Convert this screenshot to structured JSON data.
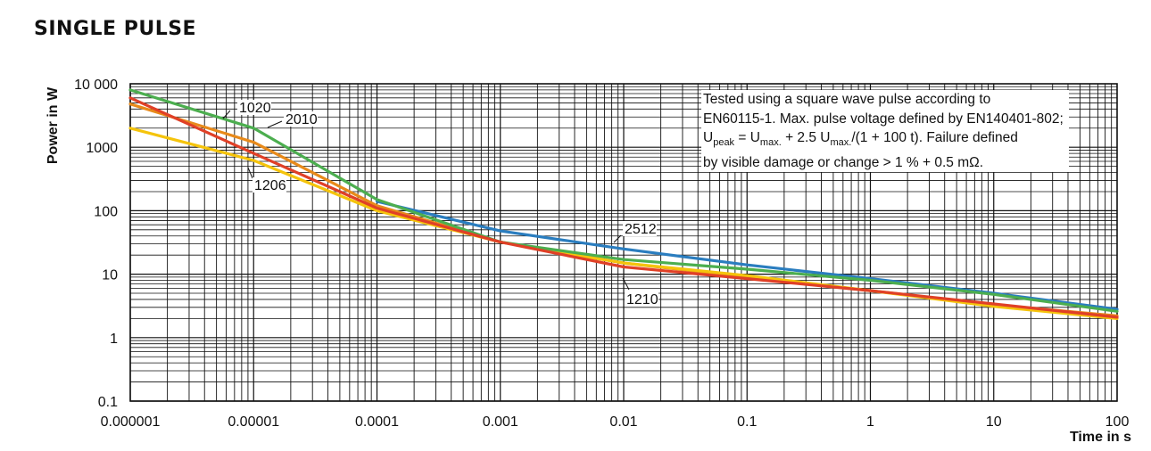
{
  "page": {
    "title": "SINGLE PULSE"
  },
  "note": {
    "line1": "Tested using a square wave pulse according to",
    "line2": "EN60115-1. Max. pulse voltage defined by EN140401-802;",
    "line3_p1": "U",
    "line3_sub1": "peak",
    "line3_p2": " = U",
    "line3_sub2": "max.",
    "line3_p3": " + 2.5 U",
    "line3_sub3": "max.",
    "line3_p4": "/(1 + 100 t). Failure defined",
    "line4": "by visible damage or change > 1 % + 0.5 mΩ."
  },
  "chart_data": {
    "type": "line",
    "title": "SINGLE PULSE",
    "xlabel": "Time in s",
    "ylabel": "Power in W",
    "x_scale": "log",
    "y_scale": "log",
    "xlim": [
      1e-06,
      100
    ],
    "ylim": [
      0.1,
      10000
    ],
    "x_ticks": [
      "0.000001",
      "0.00001",
      "0.0001",
      "0.001",
      "0.01",
      "0.1",
      "1",
      "10",
      "100"
    ],
    "y_ticks": [
      "0.1",
      "1",
      "10",
      "100",
      "1000",
      "10 000"
    ],
    "grid": true,
    "series": [
      {
        "name": "1020",
        "color": "#e04027",
        "points": [
          [
            1e-06,
            6000
          ],
          [
            1e-05,
            800
          ],
          [
            0.0001,
            110
          ],
          [
            0.001,
            32
          ],
          [
            0.01,
            13
          ],
          [
            0.1,
            8.5
          ],
          [
            1,
            5.5
          ],
          [
            10,
            3.4
          ],
          [
            100,
            2.1
          ]
        ]
      },
      {
        "name": "2010",
        "color": "#4cae4f",
        "points": [
          [
            1e-06,
            8000
          ],
          [
            1e-05,
            2000
          ],
          [
            0.0001,
            150
          ],
          [
            0.001,
            32
          ],
          [
            0.01,
            17
          ],
          [
            0.1,
            12
          ],
          [
            1,
            8
          ],
          [
            10,
            4.8
          ],
          [
            100,
            2.6
          ]
        ]
      },
      {
        "name": "1206",
        "color": "#e88a1a",
        "points": [
          [
            1e-06,
            4800
          ],
          [
            1e-05,
            1200
          ],
          [
            0.0001,
            120
          ],
          [
            0.001,
            32
          ],
          [
            0.01,
            15
          ],
          [
            0.1,
            9
          ],
          [
            1,
            5.5
          ],
          [
            10,
            3.3
          ],
          [
            100,
            2.2
          ]
        ]
      },
      {
        "name": "2512",
        "color": "#2a7dbf",
        "points": [
          [
            0.0001,
            140
          ],
          [
            0.001,
            48
          ],
          [
            0.01,
            25
          ],
          [
            0.1,
            14
          ],
          [
            1,
            8.5
          ],
          [
            10,
            5
          ],
          [
            100,
            2.8
          ]
        ]
      },
      {
        "name": "1210",
        "color": "#f5c40c",
        "points": [
          [
            1e-06,
            2000
          ],
          [
            1e-05,
            620
          ],
          [
            0.0001,
            100
          ],
          [
            0.001,
            32
          ],
          [
            0.01,
            15
          ],
          [
            0.1,
            9.5
          ],
          [
            1,
            5.5
          ],
          [
            10,
            3.1
          ],
          [
            100,
            2.0
          ]
        ]
      }
    ]
  }
}
